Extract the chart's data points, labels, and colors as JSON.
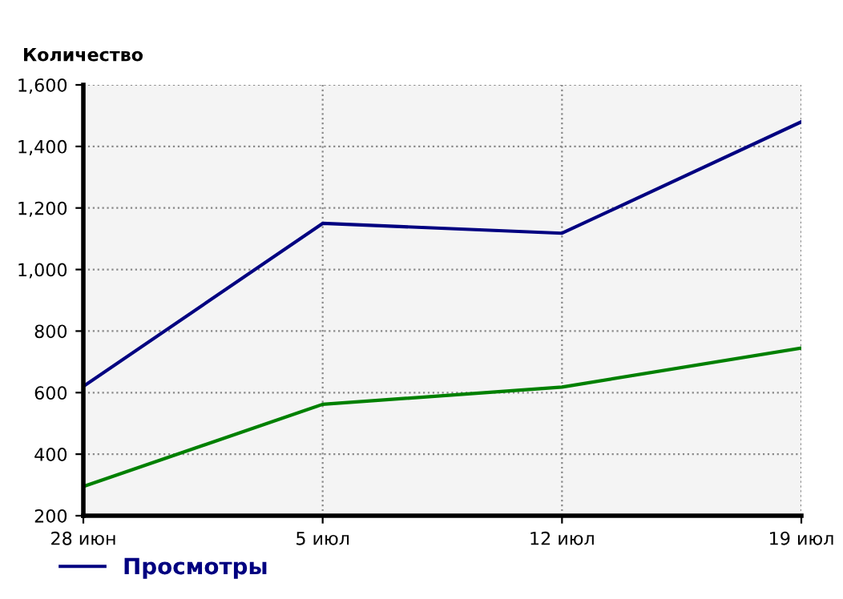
{
  "chart_data": {
    "type": "line",
    "ylabel": "Количество",
    "categories": [
      "28 июн",
      "5 июл",
      "12 июл",
      "19 июл"
    ],
    "series": [
      {
        "name": "Просмотры",
        "color": "#000080",
        "values": [
          620,
          1150,
          1118,
          1480
        ]
      },
      {
        "color": "#008000",
        "values": [
          295,
          562,
          618,
          745
        ]
      }
    ],
    "ylim": [
      200,
      1600
    ],
    "yticks": [
      {
        "value": 200,
        "label": "200"
      },
      {
        "value": 400,
        "label": "400"
      },
      {
        "value": 600,
        "label": "600"
      },
      {
        "value": 800,
        "label": "800"
      },
      {
        "value": 1000,
        "label": "1,000"
      },
      {
        "value": 1200,
        "label": "1,200"
      },
      {
        "value": 1400,
        "label": "1,400"
      },
      {
        "value": 1600,
        "label": "1,600"
      }
    ],
    "grid": true,
    "legend": "bottom left",
    "marker": "none",
    "line_style": "solid"
  }
}
